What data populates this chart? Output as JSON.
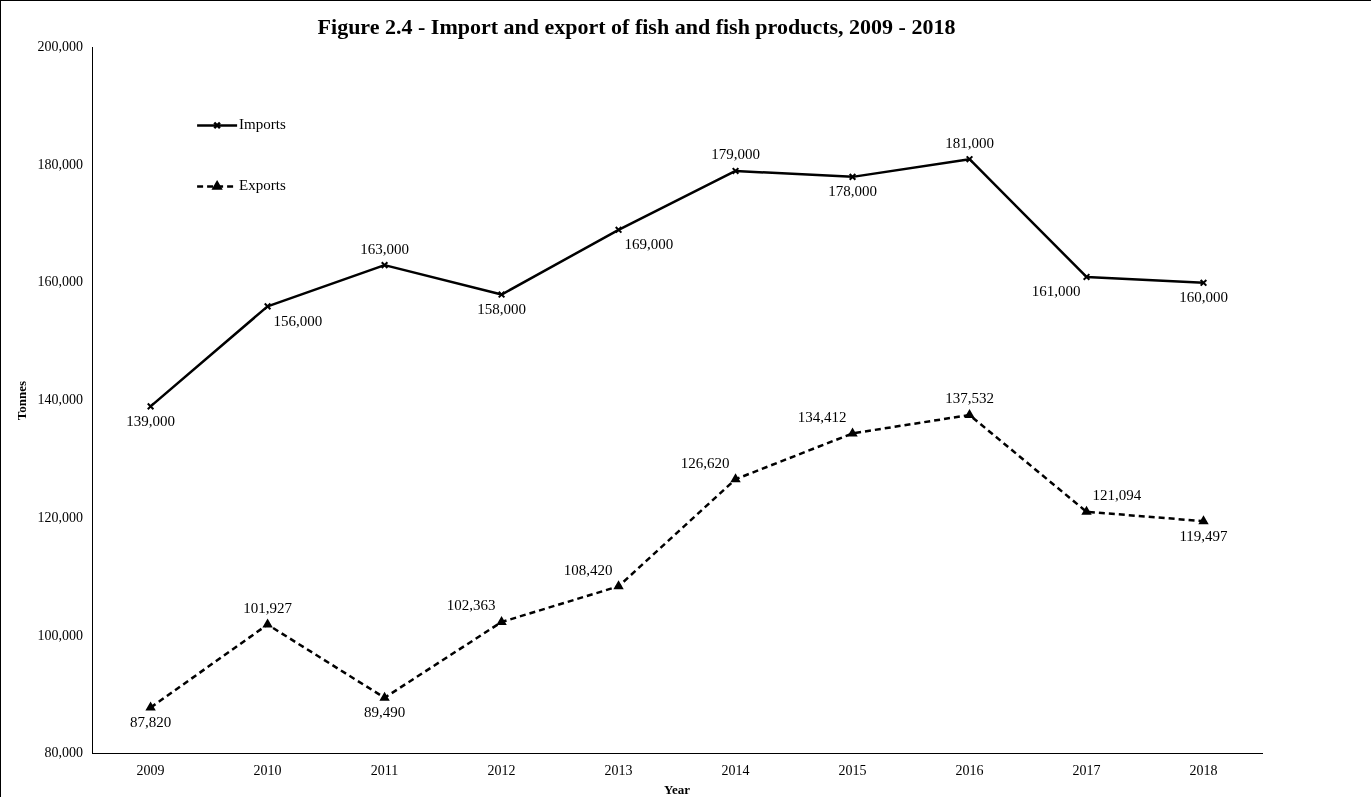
{
  "chart_data": {
    "type": "line",
    "title": "Figure 2.4 - Import and export of fish and fish products, 2009 - 2018",
    "xlabel": "Year",
    "ylabel": "Tonnes",
    "categories": [
      "2009",
      "2010",
      "2011",
      "2012",
      "2013",
      "2014",
      "2015",
      "2016",
      "2017",
      "2018"
    ],
    "series": [
      {
        "name": "Imports",
        "color": "#000000",
        "marker": "cross",
        "line_style": "solid",
        "values": [
          139000,
          156000,
          163000,
          158000,
          169000,
          179000,
          178000,
          181000,
          161000,
          160000
        ],
        "value_labels": [
          "139,000",
          "156,000",
          "163,000",
          "158,000",
          "169,000",
          "179,000",
          "178,000",
          "181,000",
          "161,000",
          "160,000"
        ]
      },
      {
        "name": "Exports",
        "color": "#000000",
        "marker": "triangle",
        "line_style": "dashed",
        "values": [
          87820,
          101927,
          89490,
          102363,
          108420,
          126620,
          134412,
          137532,
          121094,
          119497
        ],
        "value_labels": [
          "87,820",
          "101,927",
          "89,490",
          "102,363",
          "108,420",
          "126,620",
          "134,412",
          "137,532",
          "121,094",
          "119,497"
        ]
      }
    ],
    "ylim": [
      80000,
      200000
    ],
    "yticks": [
      {
        "value": 80000,
        "label": "80,000"
      },
      {
        "value": 100000,
        "label": "100,000"
      },
      {
        "value": 120000,
        "label": "120,000"
      },
      {
        "value": 140000,
        "label": "140,000"
      },
      {
        "value": 160000,
        "label": "160,000"
      },
      {
        "value": 180000,
        "label": "180,000"
      },
      {
        "value": 200000,
        "label": "200,000"
      }
    ],
    "grid": false,
    "legend": "top left"
  }
}
